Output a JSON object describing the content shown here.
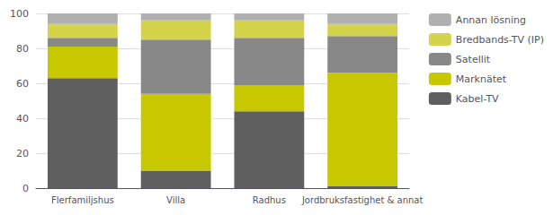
{
  "chart_data": {
    "type": "bar",
    "stacked": true,
    "grid": true,
    "legend": "right",
    "categories": [
      "Flerfamiljshus",
      "Villa",
      "Radhus",
      "Jordbruksfastighet & annat"
    ],
    "series": [
      {
        "name": "Kabel-TV",
        "color": "#5f5f5f",
        "values": [
          63,
          10,
          44,
          1
        ]
      },
      {
        "name": "Marknätet",
        "color": "#c8c800",
        "values": [
          18,
          44,
          15,
          65
        ]
      },
      {
        "name": "Satellit",
        "color": "#888888",
        "values": [
          5,
          31,
          27,
          21
        ]
      },
      {
        "name": "Bredbands-TV (IP)",
        "color": "#d4d44a",
        "values": [
          8,
          11,
          10,
          7
        ]
      },
      {
        "name": "Annan lösning",
        "color": "#b0b0b0",
        "values": [
          6,
          4,
          4,
          6
        ]
      }
    ],
    "ylim": [
      0,
      100
    ],
    "yticks": [
      0,
      20,
      40,
      60,
      80,
      100
    ]
  }
}
